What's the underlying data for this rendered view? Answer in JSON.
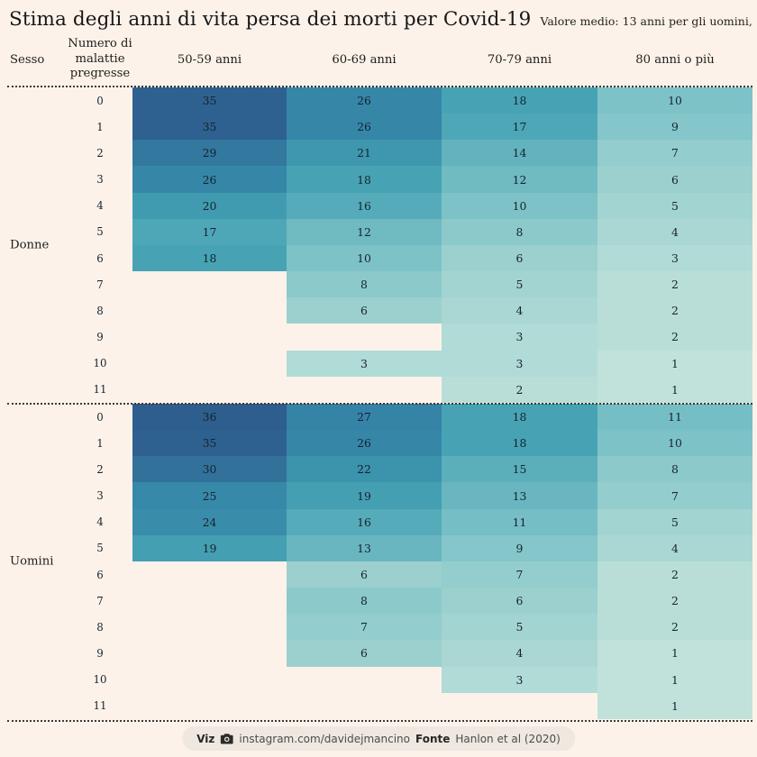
{
  "title": "Stima degli anni di vita persa dei morti per Covid-19",
  "subtitle": "Valore medio: 13 anni per gli uomini, 11 anni per le donne",
  "header": {
    "sex": "Sesso",
    "diseases": "Numero di\nmalattie\npregresse",
    "age_cols": [
      "50-59 anni",
      "60-69 anni",
      "70-79 anni",
      "80 anni o più"
    ]
  },
  "footer": {
    "viz_label": "Viz",
    "camera_icon": "camera-icon",
    "viz_value": "instagram.com/davidejmancino",
    "source_label": "Fonte",
    "source_value": "Hanlon et al (2020)"
  },
  "colors": {
    "background": "#fdf2ea",
    "pill_bg": "#efe8e0",
    "text": "#1d1d1b",
    "cell_text": "#16232f",
    "divider": "#3a3a38",
    "scale_stops": [
      [
        1,
        "#c0e2da"
      ],
      [
        10,
        "#7dc2c7"
      ],
      [
        18,
        "#47a3b4"
      ],
      [
        22,
        "#3b93ac"
      ],
      [
        27,
        "#3583a7"
      ],
      [
        30,
        "#32729a"
      ],
      [
        36,
        "#2d5e8d"
      ]
    ]
  },
  "chart_data": {
    "type": "heatmap",
    "title": "Stima degli anni di vita persa dei morti per Covid-19",
    "subtitle": "Valore medio: 13 anni per gli uomini, 11 anni per le donne",
    "columns": [
      "50-59 anni",
      "60-69 anni",
      "70-79 anni",
      "80 anni o più"
    ],
    "row_axis": "Numero di malattie pregresse",
    "group_axis": "Sesso",
    "legend": "off",
    "groups": [
      {
        "sex": "Donne",
        "rows": [
          {
            "n": 0,
            "values": [
              35,
              26,
              18,
              10
            ]
          },
          {
            "n": 1,
            "values": [
              35,
              26,
              17,
              9
            ]
          },
          {
            "n": 2,
            "values": [
              29,
              21,
              14,
              7
            ]
          },
          {
            "n": 3,
            "values": [
              26,
              18,
              12,
              6
            ]
          },
          {
            "n": 4,
            "values": [
              20,
              16,
              10,
              5
            ]
          },
          {
            "n": 5,
            "values": [
              17,
              12,
              8,
              4
            ]
          },
          {
            "n": 6,
            "values": [
              18,
              10,
              6,
              3
            ]
          },
          {
            "n": 7,
            "values": [
              null,
              8,
              5,
              2
            ]
          },
          {
            "n": 8,
            "values": [
              null,
              6,
              4,
              2
            ]
          },
          {
            "n": 9,
            "values": [
              null,
              null,
              3,
              2
            ]
          },
          {
            "n": 10,
            "values": [
              null,
              3,
              3,
              1
            ]
          },
          {
            "n": 11,
            "values": [
              null,
              null,
              2,
              1
            ]
          }
        ]
      },
      {
        "sex": "Uomini",
        "rows": [
          {
            "n": 0,
            "values": [
              36,
              27,
              18,
              11
            ]
          },
          {
            "n": 1,
            "values": [
              35,
              26,
              18,
              10
            ]
          },
          {
            "n": 2,
            "values": [
              30,
              22,
              15,
              8
            ]
          },
          {
            "n": 3,
            "values": [
              25,
              19,
              13,
              7
            ]
          },
          {
            "n": 4,
            "values": [
              24,
              16,
              11,
              5
            ]
          },
          {
            "n": 5,
            "values": [
              19,
              13,
              9,
              4
            ]
          },
          {
            "n": 6,
            "values": [
              null,
              6,
              7,
              2
            ]
          },
          {
            "n": 7,
            "values": [
              null,
              8,
              6,
              2
            ]
          },
          {
            "n": 8,
            "values": [
              null,
              7,
              5,
              2
            ]
          },
          {
            "n": 9,
            "values": [
              null,
              6,
              4,
              1
            ]
          },
          {
            "n": 10,
            "values": [
              null,
              null,
              3,
              1
            ]
          },
          {
            "n": 11,
            "values": [
              null,
              null,
              null,
              1
            ]
          }
        ]
      }
    ]
  }
}
